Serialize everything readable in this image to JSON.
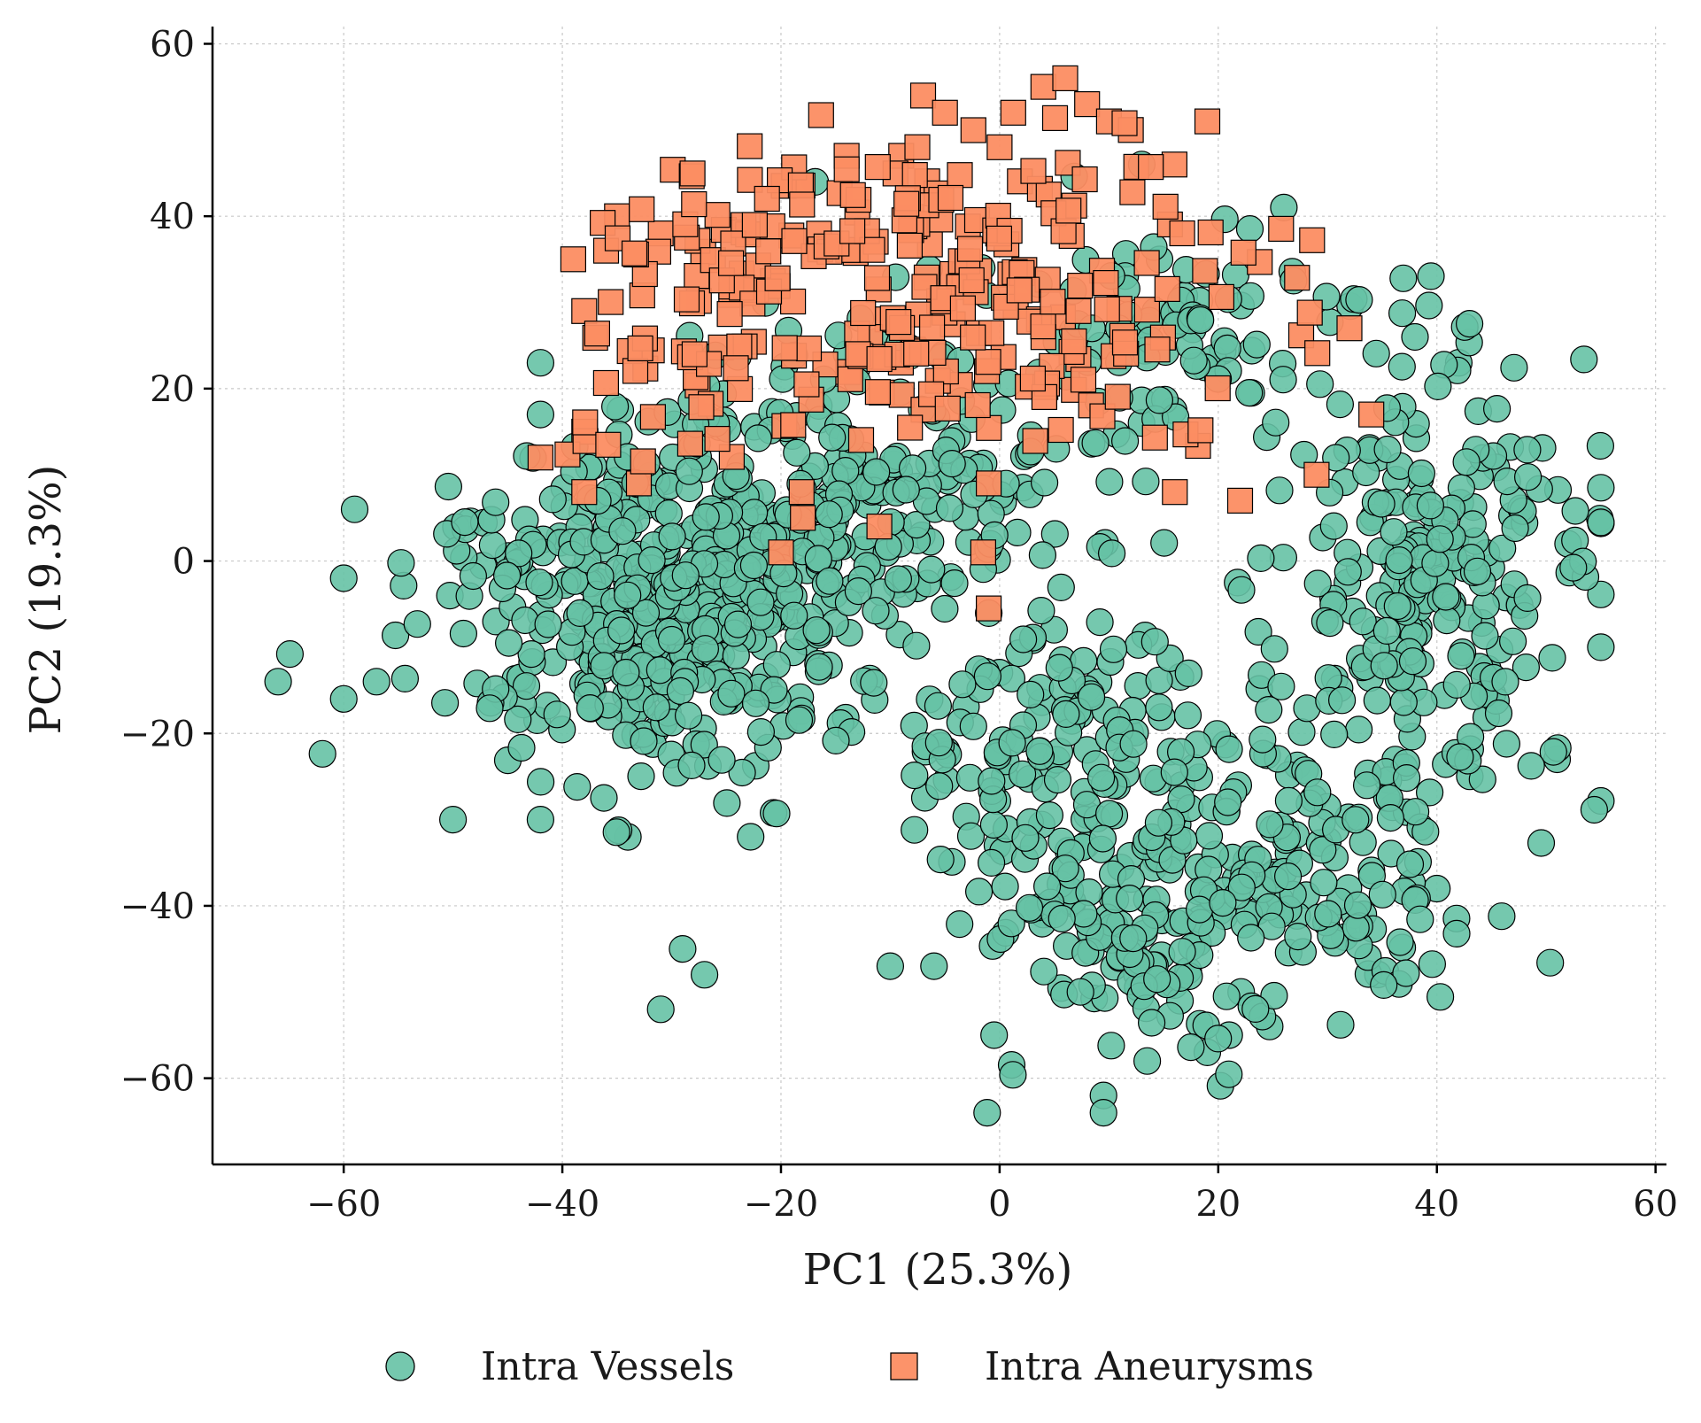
{
  "chart_data": {
    "type": "scatter",
    "title": "",
    "xlabel": "PC1 (25.3%)",
    "ylabel": "PC2 (19.3%)",
    "xlim": [
      -72,
      61
    ],
    "ylim": [
      -70,
      62
    ],
    "xticks": [
      -60,
      -40,
      -20,
      0,
      20,
      40,
      60
    ],
    "yticks": [
      -60,
      -40,
      -20,
      0,
      20,
      40,
      60
    ],
    "xtick_labels": [
      "−60",
      "−40",
      "−20",
      "0",
      "20",
      "40",
      "60"
    ],
    "ytick_labels": [
      "−60",
      "−40",
      "−20",
      "0",
      "20",
      "40",
      "60"
    ],
    "grid": true,
    "legend_position": "bottom-center",
    "series": [
      {
        "name": "Intra Vessels",
        "marker": "circle",
        "color": "#66c2a5",
        "count": 1500,
        "seed": 12345,
        "representative_points": [
          [
            -66,
            -14
          ],
          [
            -60,
            -2
          ],
          [
            -59,
            6
          ],
          [
            -60,
            -16
          ],
          [
            -57,
            -14
          ],
          [
            -50,
            -30
          ],
          [
            -42,
            -30
          ],
          [
            -31,
            -52
          ],
          [
            -10,
            -47
          ],
          [
            -6,
            -47
          ],
          [
            -0.5,
            -55
          ],
          [
            9.5,
            -62
          ],
          [
            9.5,
            -64
          ],
          [
            13.5,
            -58
          ],
          [
            19,
            -57
          ],
          [
            21,
            -55
          ],
          [
            55,
            -10
          ],
          [
            52,
            2
          ],
          [
            51,
            -23
          ],
          [
            40,
            -38
          ],
          [
            -42,
            23
          ],
          [
            -42,
            17
          ],
          [
            -14,
            24
          ],
          [
            13,
            46
          ],
          [
            26,
            41
          ],
          [
            38,
            26
          ],
          [
            42,
            23
          ],
          [
            -34,
            -32
          ],
          [
            -29,
            -45
          ],
          [
            -27,
            -48
          ]
        ]
      },
      {
        "name": "Intra Aneurysms",
        "marker": "square",
        "color": "#fc8d62",
        "count": 320,
        "seed": 67890,
        "representative_points": [
          [
            -7,
            54
          ],
          [
            -5,
            52
          ],
          [
            4,
            55
          ],
          [
            6,
            56
          ],
          [
            8,
            53
          ],
          [
            10,
            51
          ],
          [
            12,
            50
          ],
          [
            19,
            51
          ],
          [
            -39,
            35
          ],
          [
            -36,
            36
          ],
          [
            -35,
            40
          ],
          [
            -38,
            29
          ],
          [
            -42,
            12
          ],
          [
            -38,
            15
          ],
          [
            -38,
            8
          ],
          [
            -33,
            9
          ],
          [
            -20,
            1
          ],
          [
            -18,
            5
          ],
          [
            -11,
            4
          ],
          [
            -1.5,
            1
          ],
          [
            -1,
            9
          ],
          [
            -1,
            -5.5
          ],
          [
            22,
            7
          ],
          [
            29,
            10
          ],
          [
            34,
            17
          ],
          [
            32,
            27
          ],
          [
            -31,
            38
          ],
          [
            -14,
            47
          ],
          [
            -9,
            47
          ],
          [
            0,
            48
          ],
          [
            16,
            46
          ]
        ]
      }
    ]
  }
}
